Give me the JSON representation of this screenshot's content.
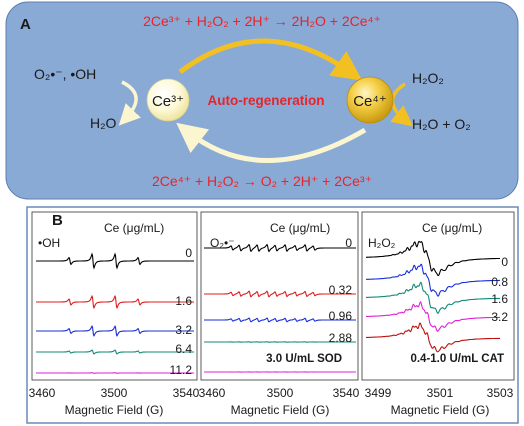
{
  "panel_a": {
    "label": "A",
    "reaction_top": "2Ce³⁺ + H₂O₂ + 2H⁺ → 2H₂O + 2Ce⁴⁺",
    "reaction_bottom": "2Ce⁴⁺ + H₂O₂ → O₂ + 2H⁺ + 2Ce³⁺",
    "ce3_label": "Ce³⁺",
    "ce4_label": "Ce⁴⁺",
    "center_label": "Auto-regeneration",
    "left_input": "O₂•⁻, •OH",
    "left_output": "H₂O",
    "right_input": "H₂O₂",
    "right_output": "H₂O + O₂",
    "colors": {
      "panel_bg": "#8aaad6",
      "yellow_arrow": "#f2c021",
      "pale_arrow": "#fbf6cf",
      "red_text": "#e8232a"
    }
  },
  "panel_b": {
    "label": "B",
    "plots": [
      {
        "species": "•OH",
        "ce_header": "Ce (μg/mL)",
        "traces": [
          {
            "label": "0",
            "color": "#000000"
          },
          {
            "label": "1.6",
            "color": "#e01b1b"
          },
          {
            "label": "3.2",
            "color": "#1a2fd6"
          },
          {
            "label": "6.4",
            "color": "#0f8a7a"
          },
          {
            "label": "11.2",
            "color": "#e021d8"
          }
        ],
        "ticks": [
          "3460",
          "3500",
          "3540"
        ],
        "xlabel": "Magnetic Field (G)"
      },
      {
        "species": "O₂•⁻",
        "ce_header": "Ce (μg/mL)",
        "traces": [
          {
            "label": "0",
            "color": "#000000"
          },
          {
            "label": "0.32",
            "color": "#e01b1b"
          },
          {
            "label": "0.96",
            "color": "#1a2fd6"
          },
          {
            "label": "2.88",
            "color": "#0f8a7a"
          },
          {
            "label": "",
            "color": "#e021d8"
          }
        ],
        "note": "3.0 U/mL  SOD",
        "ticks": [
          "3460",
          "3500",
          "3540"
        ],
        "xlabel": "Magnetic Field (G)"
      },
      {
        "species": "H₂O₂",
        "ce_header": "Ce (μg/mL)",
        "traces": [
          {
            "label": "0",
            "color": "#000000"
          },
          {
            "label": "0.8",
            "color": "#1a2fd6"
          },
          {
            "label": "1.6",
            "color": "#0f8a7a"
          },
          {
            "label": "3.2",
            "color": "#e021d8"
          },
          {
            "label": "",
            "color": "#c01010"
          }
        ],
        "note": "0.4-1.0 U/mL CAT",
        "ticks": [
          "3499",
          "3501",
          "3503"
        ],
        "xlabel": "Magnetic Field (G)"
      }
    ]
  }
}
